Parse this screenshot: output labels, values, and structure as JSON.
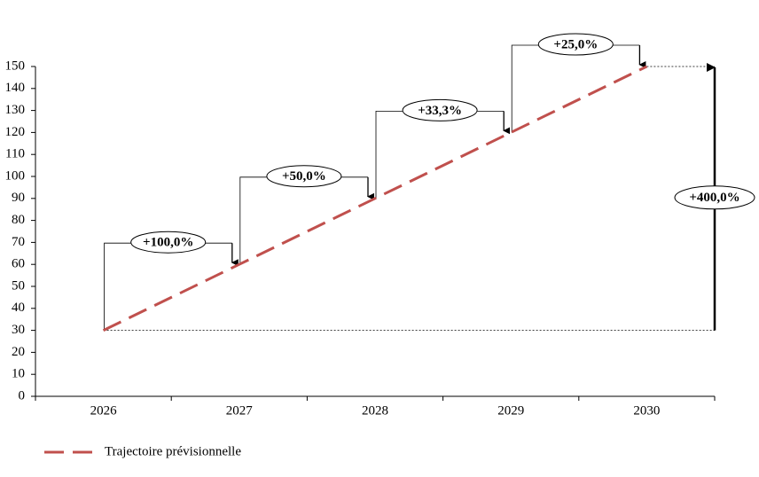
{
  "chart_data": {
    "type": "line",
    "categories": [
      "2026",
      "2027",
      "2028",
      "2029",
      "2030"
    ],
    "series": [
      {
        "name": "Trajectoire prévisionnelle",
        "color": "#c0504d",
        "values": [
          30,
          60,
          90,
          120,
          150
        ]
      }
    ],
    "ylim": [
      0,
      150
    ],
    "yticks": [
      0,
      10,
      20,
      30,
      40,
      50,
      60,
      70,
      80,
      90,
      100,
      110,
      120,
      130,
      140,
      150
    ],
    "annotations": [
      "+100,0%",
      "+50,0%",
      "+33,3%",
      "+25,0%"
    ],
    "total_annotation": "+400,0%",
    "legend": "bottom-left",
    "line_style": "dashed"
  }
}
